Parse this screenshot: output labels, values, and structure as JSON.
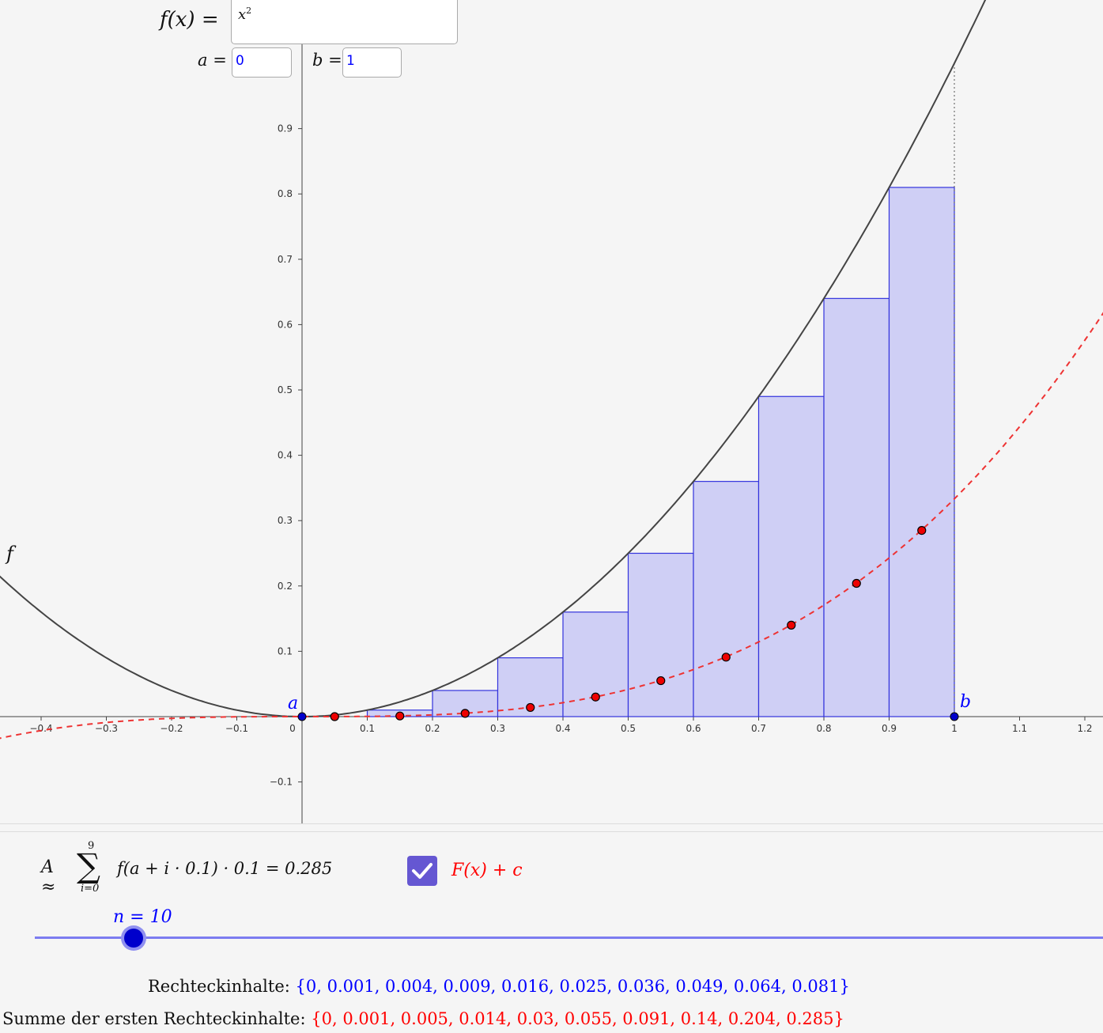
{
  "inputs": {
    "f_label": "f(x) =",
    "f_value_base": "x",
    "f_value_exp": "2",
    "a_label": "a =",
    "a_value": "0",
    "b_label": "b =",
    "b_value": "1"
  },
  "graph": {
    "curve_label": "f",
    "point_a_label": "a",
    "point_b_label": "b",
    "x_ticks": [
      "−0.4",
      "−0.3",
      "−0.2",
      "−0.1",
      "0",
      "0.1",
      "0.2",
      "0.3",
      "0.4",
      "0.5",
      "0.6",
      "0.7",
      "0.8",
      "0.9",
      "1",
      "1.1",
      "1.2"
    ],
    "y_ticks": [
      "0.9",
      "0.8",
      "0.7",
      "0.6",
      "0.5",
      "0.4",
      "0.3",
      "0.2",
      "0.1",
      "−0.1"
    ],
    "x_tick_values": [
      -0.4,
      -0.3,
      -0.2,
      -0.1,
      0,
      0.1,
      0.2,
      0.3,
      0.4,
      0.5,
      0.6,
      0.7,
      0.8,
      0.9,
      1,
      1.1,
      1.2
    ],
    "y_tick_values": [
      0.9,
      0.8,
      0.7,
      0.6,
      0.5,
      0.4,
      0.3,
      0.2,
      0.1,
      -0.1
    ],
    "rect_heights": [
      0,
      0.01,
      0.04,
      0.09,
      0.16,
      0.25,
      0.36,
      0.49,
      0.64,
      0.81
    ],
    "cumulative_points": [
      [
        0.05,
        0
      ],
      [
        0.15,
        0.001
      ],
      [
        0.25,
        0.005
      ],
      [
        0.35,
        0.014
      ],
      [
        0.45,
        0.03
      ],
      [
        0.55,
        0.055
      ],
      [
        0.65,
        0.091
      ],
      [
        0.75,
        0.14
      ],
      [
        0.85,
        0.204
      ],
      [
        0.95,
        0.285
      ]
    ],
    "colors": {
      "curve": "#444444",
      "rect_fill": "#cfcff5",
      "rect_stroke": "#3333dd",
      "antiderivative": "#ee3333",
      "points": "#0000cc"
    }
  },
  "formula": {
    "lhs": "A ≈",
    "sum_top": "9",
    "sum_bottom": "i=0",
    "rhs": "f(a + i · 0.1) · 0.1 = 0.285"
  },
  "checkbox": {
    "label": "F(x) + c",
    "checked": true
  },
  "slider": {
    "label": "n = 10",
    "value": 10
  },
  "lists": {
    "rect_label": "Rechteckinhalte:",
    "rect_values": "{0, 0.001, 0.004, 0.009, 0.016, 0.025, 0.036, 0.049, 0.064, 0.081}",
    "sum_label": "Summe der ersten Rechteckinhalte:",
    "sum_values": "{0, 0.001, 0.005, 0.014, 0.03, 0.055, 0.091, 0.14, 0.204, 0.285}"
  }
}
